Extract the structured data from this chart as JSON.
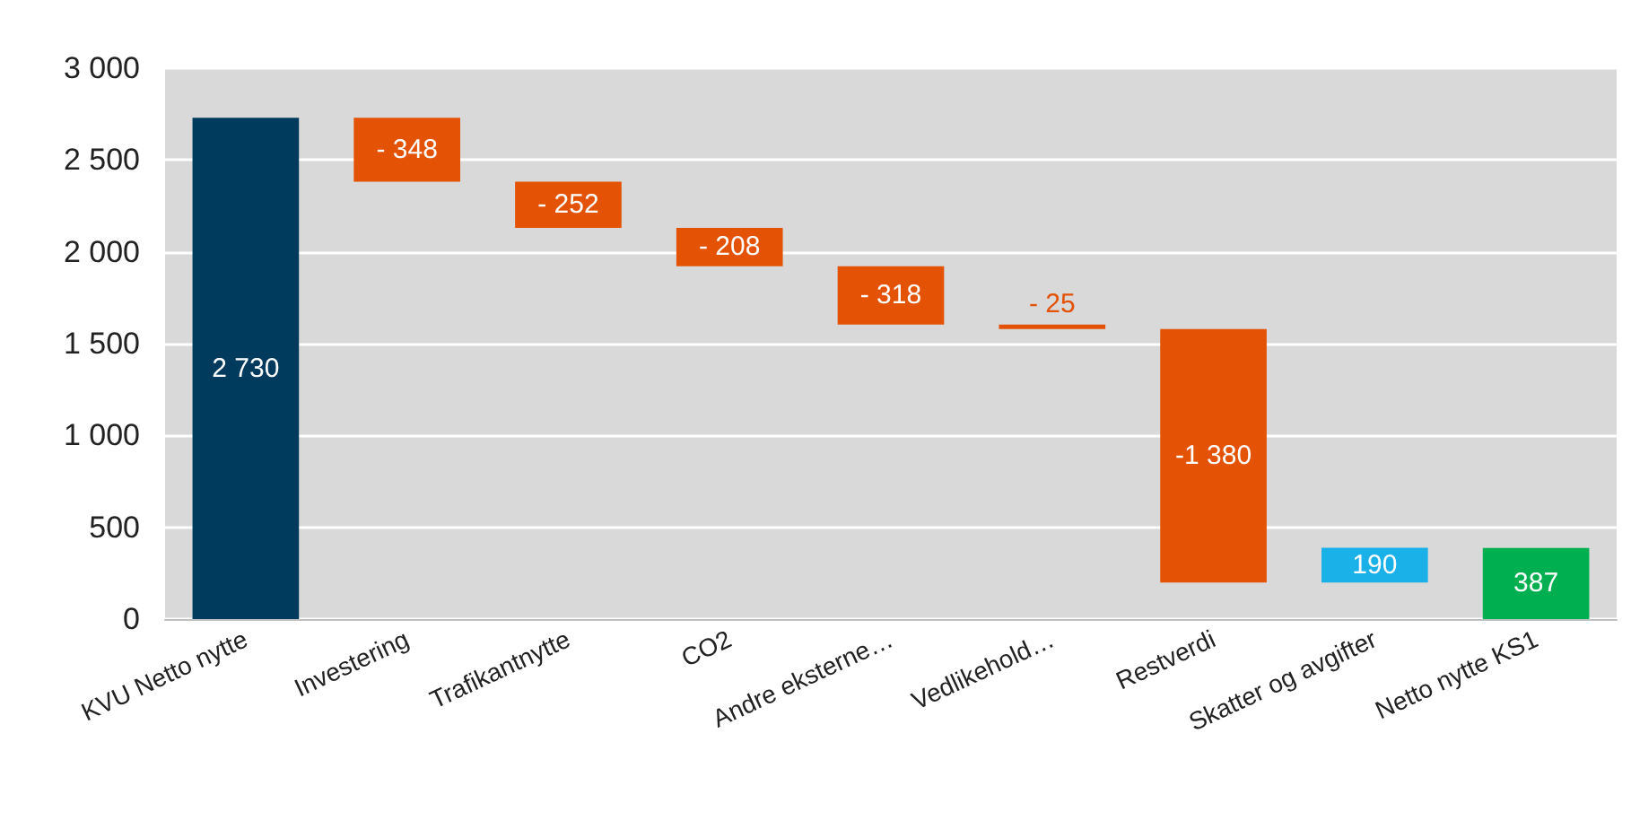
{
  "chart_data": {
    "type": "bar",
    "categories": [
      "KVU Netto nytte",
      "Investering",
      "Trafikantnytte",
      "CO2",
      "Andre eksterne…",
      "Vedlikehold…",
      "Restverdi",
      "Skatter og avgifter",
      "Netto nytte KS1"
    ],
    "values": [
      2730,
      -348,
      -252,
      -208,
      -318,
      -25,
      -1380,
      190,
      387
    ],
    "base": [
      0,
      2730,
      2382,
      2130,
      1922,
      1604,
      1579,
      199,
      0
    ],
    "colors": [
      "#003a5d",
      "#e35205",
      "#e35205",
      "#e35205",
      "#e35205",
      "#e35205",
      "#e35205",
      "#1ab0e8",
      "#00b050"
    ],
    "value_labels": [
      "2 730",
      "- 348",
      "- 252",
      "- 208",
      "- 318",
      "- 25",
      "-1 380",
      "190",
      "387"
    ],
    "ylim": [
      0,
      3000
    ],
    "yticks": [
      {
        "value": 0,
        "label": "0"
      },
      {
        "value": 500,
        "label": "500"
      },
      {
        "value": 1000,
        "label": "1 000"
      },
      {
        "value": 1500,
        "label": "1 500"
      },
      {
        "value": 2000,
        "label": "2 000"
      },
      {
        "value": 2500,
        "label": "2 500"
      },
      {
        "value": 3000,
        "label": "3 000"
      }
    ],
    "grid": "y"
  }
}
